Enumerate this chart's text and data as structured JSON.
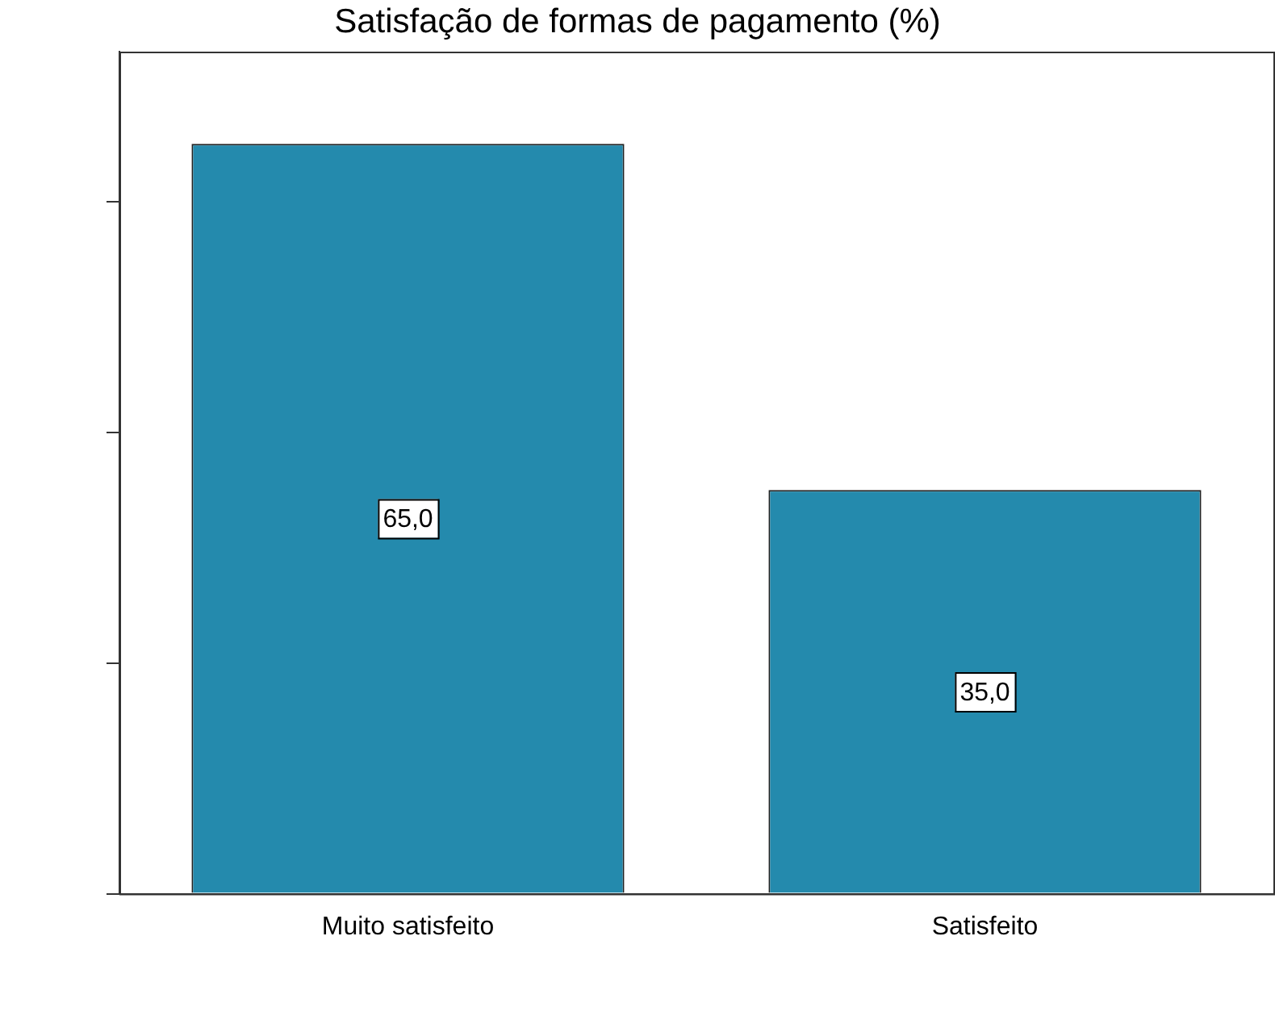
{
  "chart_data": {
    "type": "bar",
    "title": "Satisfação de formas de pagamento (%)",
    "categories": [
      "Muito satisfeito",
      "Satisfeito"
    ],
    "values": [
      65,
      35
    ],
    "value_labels": [
      "65,0",
      "35,0"
    ],
    "color": "#248aad",
    "ylim": [
      0,
      73
    ],
    "yticks": [
      {
        "value": 0,
        "label": null
      },
      {
        "value": 20,
        "label": null
      },
      {
        "value": 40,
        "label": null
      },
      {
        "value": 60,
        "label": null
      }
    ],
    "grid": false,
    "legend": false
  }
}
